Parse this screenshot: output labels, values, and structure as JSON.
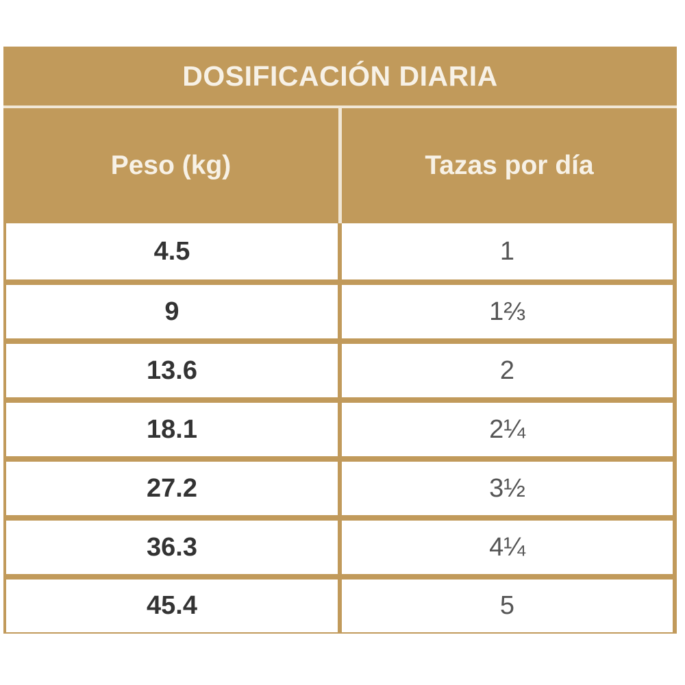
{
  "table": {
    "title": "DOSIFICACIÓN DIARIA",
    "headers": [
      "Peso (kg)",
      "Tazas por día"
    ],
    "rows": [
      [
        "4.5",
        "1"
      ],
      [
        "9",
        "1⅔"
      ],
      [
        "13.6",
        "2"
      ],
      [
        "18.1",
        "2¼"
      ],
      [
        "27.2",
        "3½"
      ],
      [
        "36.3",
        "4¼"
      ],
      [
        "45.4",
        "5"
      ]
    ],
    "colors": {
      "header_bg": "#c19a5b",
      "header_text": "#f7f1e6",
      "cell_bg": "#ffffff",
      "weight_text": "#333333",
      "cups_text": "#555555"
    }
  }
}
